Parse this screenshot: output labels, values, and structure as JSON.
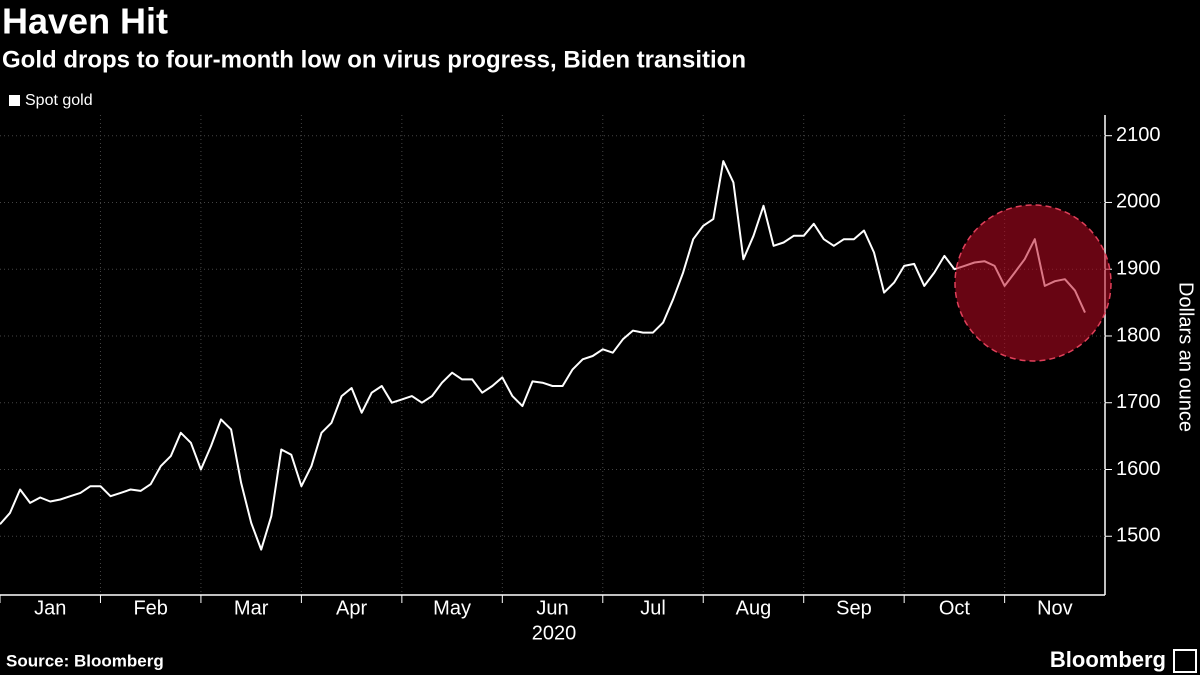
{
  "chart_data": {
    "type": "line",
    "title": "Haven Hit",
    "subtitle": "Gold drops to four-month low on virus progress, Biden transition",
    "source": "Source: Bloomberg",
    "brand": "Bloomberg",
    "x_label": "2020",
    "y_label": "Dollars an ounce",
    "legend": "top-left",
    "grid": true,
    "categories": [
      null,
      null,
      null,
      null,
      null,
      "Jan",
      null,
      null,
      null,
      null,
      null,
      null,
      null,
      null,
      null,
      "Feb",
      null,
      null,
      null,
      null,
      null,
      null,
      null,
      null,
      null,
      "Mar",
      null,
      null,
      null,
      null,
      null,
      null,
      null,
      null,
      null,
      "Apr",
      null,
      null,
      null,
      null,
      null,
      null,
      null,
      null,
      null,
      "May",
      null,
      null,
      null,
      null,
      null,
      null,
      null,
      null,
      null,
      "Jun",
      null,
      null,
      null,
      null,
      null,
      null,
      null,
      null,
      null,
      "Jul",
      null,
      null,
      null,
      null,
      null,
      null,
      null,
      null,
      null,
      "Aug",
      null,
      null,
      null,
      null,
      null,
      null,
      null,
      null,
      null,
      "Sep",
      null,
      null,
      null,
      null,
      null,
      null,
      null,
      null,
      null,
      "Oct",
      null,
      null,
      null,
      null,
      null,
      null,
      null,
      null,
      null,
      "Nov",
      null,
      null,
      null
    ],
    "series": [
      {
        "name": "Spot gold",
        "color": "#ffffff",
        "values": [
          1518,
          1535,
          1570,
          1550,
          1558,
          1552,
          1555,
          1560,
          1565,
          1575,
          1575,
          1560,
          1565,
          1570,
          1568,
          1578,
          1605,
          1620,
          1655,
          1640,
          1600,
          1635,
          1675,
          1660,
          1580,
          1520,
          1480,
          1530,
          1630,
          1622,
          1575,
          1605,
          1655,
          1670,
          1710,
          1722,
          1685,
          1715,
          1725,
          1700,
          1705,
          1710,
          1700,
          1710,
          1730,
          1745,
          1735,
          1735,
          1715,
          1725,
          1738,
          1710,
          1695,
          1732,
          1730,
          1725,
          1725,
          1750,
          1765,
          1770,
          1780,
          1775,
          1795,
          1808,
          1805,
          1805,
          1820,
          1855,
          1895,
          1945,
          1965,
          1975,
          2062,
          2030,
          1915,
          1950,
          1995,
          1935,
          1940,
          1950,
          1950,
          1968,
          1945,
          1935,
          1945,
          1945,
          1958,
          1925,
          1865,
          1880,
          1905,
          1908,
          1875,
          1895,
          1920,
          1900,
          1905,
          1910,
          1912,
          1905,
          1875,
          1895,
          1915,
          1945,
          1875,
          1882,
          1885,
          1868,
          1835
        ]
      }
    ],
    "ylim": [
      1412,
      2131
    ],
    "yticks": [
      1500,
      1600,
      1700,
      1800,
      1900,
      2000,
      2100
    ]
  }
}
